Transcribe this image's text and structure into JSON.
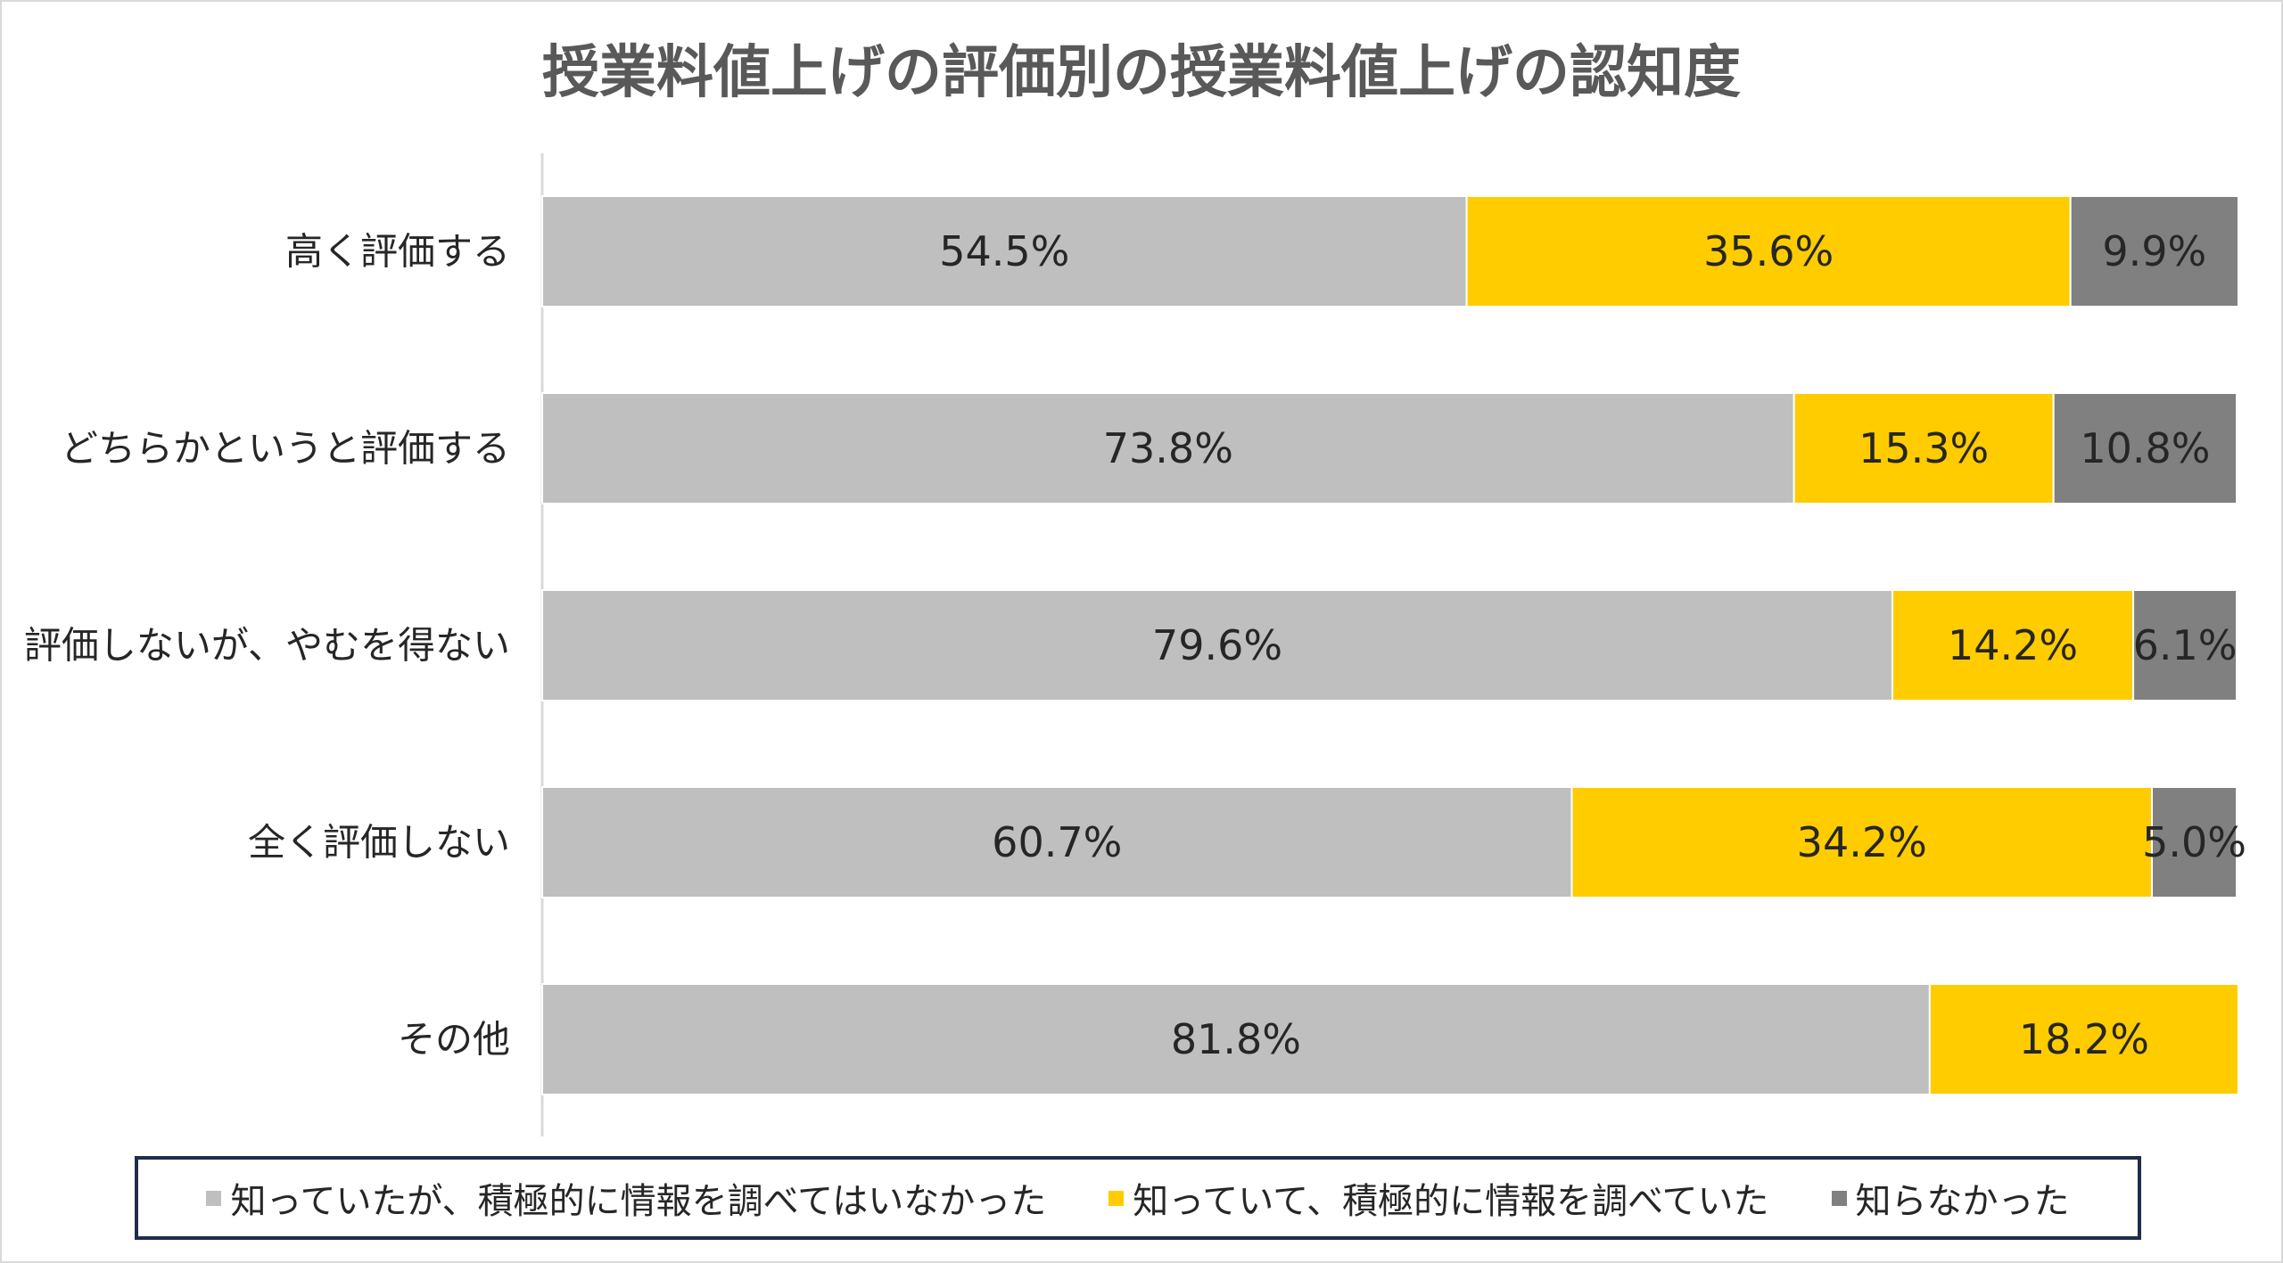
{
  "chart_data": {
    "type": "bar",
    "orientation": "horizontal",
    "stacked": true,
    "percent_stacked": true,
    "title": "授業料値上げの評価別の授業料値上げの認知度",
    "categories": [
      "高く評価する",
      "どちらかというと評価する",
      "評価しないが、やむを得ない",
      "全く評価しない",
      "その他"
    ],
    "series": [
      {
        "name": "知っていたが、積極的に情報を調べてはいなかった",
        "color": "#bfbfbf",
        "values": [
          54.5,
          73.8,
          79.6,
          60.7,
          81.8
        ],
        "labels": [
          "54.5%",
          "73.8%",
          "79.6%",
          "60.7%",
          "81.8%"
        ]
      },
      {
        "name": "知っていて、積極的に情報を調べていた",
        "color": "#ffcc00",
        "values": [
          35.6,
          15.3,
          14.2,
          34.2,
          18.2
        ],
        "labels": [
          "35.6%",
          "15.3%",
          "14.2%",
          "34.2%",
          "18.2%"
        ]
      },
      {
        "name": "知らなかった",
        "color": "#808080",
        "values": [
          9.9,
          10.8,
          6.1,
          5.0,
          0
        ],
        "labels": [
          "9.9%",
          "10.8%",
          "6.1%",
          "5.0%",
          ""
        ]
      }
    ],
    "xlim": [
      0,
      100
    ],
    "grid": false,
    "legend_position": "bottom"
  }
}
